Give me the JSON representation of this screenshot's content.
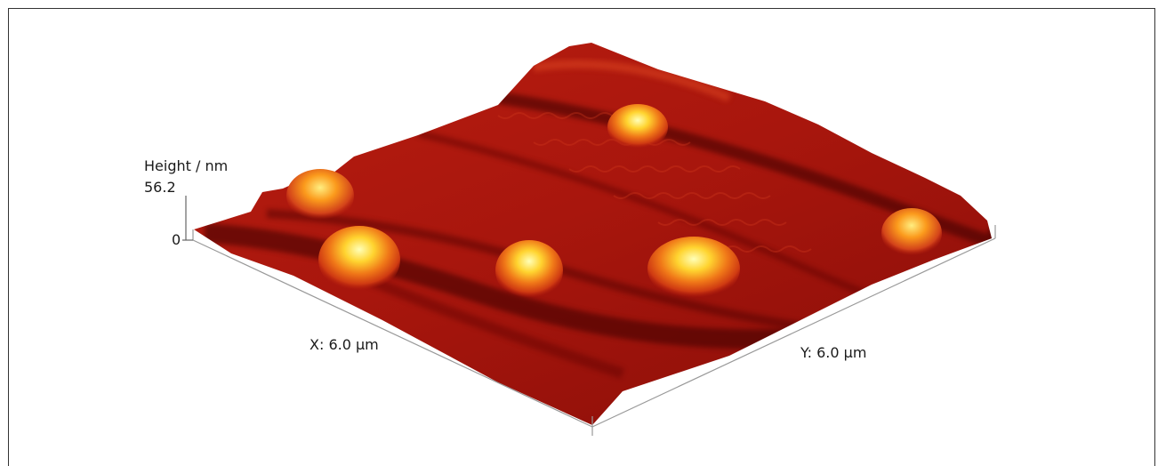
{
  "figure": {
    "z_axis": {
      "title": "Height / nm",
      "max_label": "56.2",
      "min_label": "0"
    },
    "x_axis": {
      "label": "X: 6.0 μm"
    },
    "y_axis": {
      "label": "Y: 6.0 μm"
    },
    "colormap": [
      "#6e0707",
      "#a3160e",
      "#c62a13",
      "#e65a12",
      "#ffbb1c",
      "#ffff9a"
    ]
  }
}
